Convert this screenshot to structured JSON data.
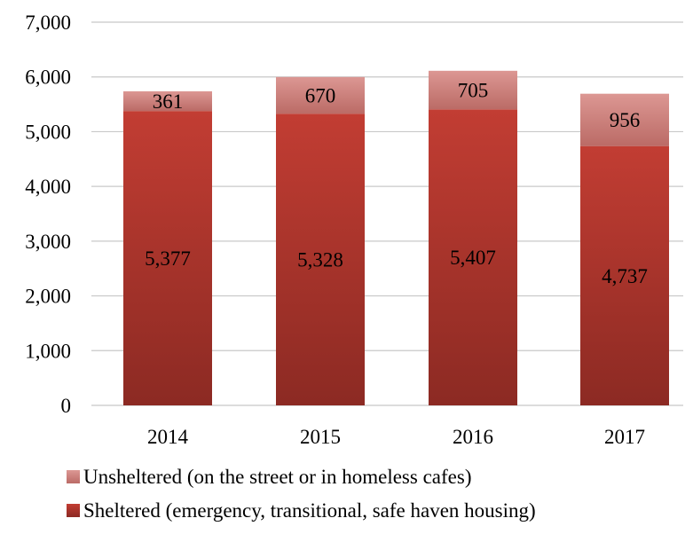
{
  "chart_data": {
    "type": "bar",
    "stacked": true,
    "title": "",
    "xlabel": "",
    "ylabel": "",
    "categories": [
      "2014",
      "2015",
      "2016",
      "2017"
    ],
    "ylim": [
      0,
      7000
    ],
    "yticks": [
      "0",
      "1,000",
      "2,000",
      "3,000",
      "4,000",
      "5,000",
      "6,000",
      "7,000"
    ],
    "grid": true,
    "legend_position": "bottom",
    "series": [
      {
        "name": "Sheltered (emergency, transitional, safe haven housing)",
        "values": [
          5377,
          5328,
          5407,
          4737
        ],
        "labels": [
          "5,377",
          "5,328",
          "5,407",
          "4,737"
        ],
        "color": "#b83a32"
      },
      {
        "name": "Unsheltered (on the street or in homeless cafes)",
        "values": [
          361,
          670,
          705,
          956
        ],
        "labels": [
          "361",
          "670",
          "705",
          "956"
        ],
        "color": "#d48a86"
      }
    ]
  }
}
